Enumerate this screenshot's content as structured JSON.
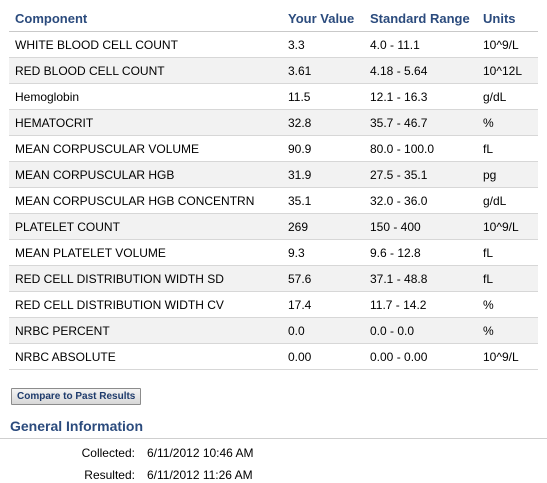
{
  "table": {
    "headers": [
      "Component",
      "Your Value",
      "Standard Range",
      "Units"
    ],
    "rows": [
      {
        "component": "WHITE BLOOD CELL COUNT",
        "value": "3.3",
        "range": "4.0 - 11.1",
        "units": "10^9/L"
      },
      {
        "component": "RED BLOOD CELL COUNT",
        "value": "3.61",
        "range": "4.18 - 5.64",
        "units": "10^12L"
      },
      {
        "component": "Hemoglobin",
        "value": "11.5",
        "range": "12.1 - 16.3",
        "units": "g/dL"
      },
      {
        "component": "HEMATOCRIT",
        "value": "32.8",
        "range": "35.7 - 46.7",
        "units": "%"
      },
      {
        "component": "MEAN CORPUSCULAR VOLUME",
        "value": "90.9",
        "range": "80.0 - 100.0",
        "units": "fL"
      },
      {
        "component": "MEAN CORPUSCULAR HGB",
        "value": "31.9",
        "range": "27.5 - 35.1",
        "units": "pg"
      },
      {
        "component": "MEAN CORPUSCULAR HGB CONCENTRN",
        "value": "35.1",
        "range": "32.0 - 36.0",
        "units": "g/dL"
      },
      {
        "component": "PLATELET COUNT",
        "value": "269",
        "range": "150 - 400",
        "units": "10^9/L"
      },
      {
        "component": "MEAN PLATELET VOLUME",
        "value": "9.3",
        "range": "9.6 - 12.8",
        "units": "fL"
      },
      {
        "component": "RED CELL DISTRIBUTION WIDTH SD",
        "value": "57.6",
        "range": "37.1 - 48.8",
        "units": "fL"
      },
      {
        "component": "RED CELL DISTRIBUTION WIDTH CV",
        "value": "17.4",
        "range": "11.7 - 14.2",
        "units": "%"
      },
      {
        "component": "NRBC PERCENT",
        "value": "0.0",
        "range": "0.0 - 0.0",
        "units": "%"
      },
      {
        "component": "NRBC ABSOLUTE",
        "value": "0.00",
        "range": "0.00 - 0.00",
        "units": "10^9/L"
      }
    ]
  },
  "compare_button": "Compare to Past Results",
  "general_info": {
    "title": "General Information",
    "collected_label": "Collected:",
    "collected_value": "6/11/2012 10:46 AM",
    "resulted_label": "Resulted:",
    "resulted_value": "6/11/2012 11:26 AM"
  },
  "colors": {
    "heading": "#2b4b7d",
    "stripe": "#f2f2f2"
  }
}
